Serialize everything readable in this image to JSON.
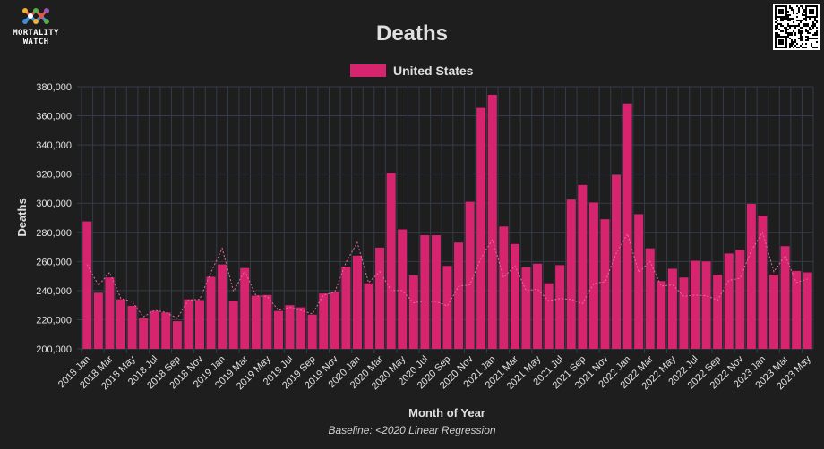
{
  "brand": {
    "logo_line1": "MORTALITY",
    "logo_line2": "WATCH"
  },
  "colors": {
    "bar": "#d6246e",
    "baseline": "#e46fa0",
    "grid": "#353b4a",
    "text": "#e0e0e0",
    "background": "#1e1e1e"
  },
  "chart_data": {
    "type": "bar",
    "title": "Deaths",
    "xlabel": "Month of Year",
    "ylabel": "Deaths",
    "caption": "Baseline: <2020 Linear Regression",
    "ylim": [
      200000,
      380000
    ],
    "yticks": [
      200000,
      220000,
      240000,
      260000,
      280000,
      300000,
      320000,
      340000,
      360000,
      380000
    ],
    "ytick_labels": [
      "200,000",
      "220,000",
      "240,000",
      "260,000",
      "280,000",
      "300,000",
      "320,000",
      "340,000",
      "360,000",
      "380,000"
    ],
    "legend": [
      {
        "label": "United States",
        "color": "#d6246e"
      }
    ],
    "categories": [
      "2018 Jan",
      "2018 Feb",
      "2018 Mar",
      "2018 Apr",
      "2018 May",
      "2018 Jun",
      "2018 Jul",
      "2018 Aug",
      "2018 Sep",
      "2018 Oct",
      "2018 Nov",
      "2018 Dec",
      "2019 Jan",
      "2019 Feb",
      "2019 Mar",
      "2019 Apr",
      "2019 May",
      "2019 Jun",
      "2019 Jul",
      "2019 Aug",
      "2019 Sep",
      "2019 Oct",
      "2019 Nov",
      "2019 Dec",
      "2020 Jan",
      "2020 Feb",
      "2020 Mar",
      "2020 Apr",
      "2020 May",
      "2020 Jun",
      "2020 Jul",
      "2020 Aug",
      "2020 Sep",
      "2020 Oct",
      "2020 Nov",
      "2020 Dec",
      "2021 Jan",
      "2021 Feb",
      "2021 Mar",
      "2021 Apr",
      "2021 May",
      "2021 Jun",
      "2021 Jul",
      "2021 Aug",
      "2021 Sep",
      "2021 Oct",
      "2021 Nov",
      "2021 Dec",
      "2022 Jan",
      "2022 Feb",
      "2022 Mar",
      "2022 Apr",
      "2022 May",
      "2022 Jun",
      "2022 Jul",
      "2022 Aug",
      "2022 Sep",
      "2022 Oct",
      "2022 Nov",
      "2022 Dec",
      "2023 Jan",
      "2023 Feb",
      "2023 Mar",
      "2023 Apr",
      "2023 May"
    ],
    "xtick_labels": [
      "2018 Jan",
      "2018 Mar",
      "2018 May",
      "2018 Jul",
      "2018 Sep",
      "2018 Nov",
      "2019 Jan",
      "2019 Mar",
      "2019 May",
      "2019 Jul",
      "2019 Sep",
      "2019 Nov",
      "2020 Jan",
      "2020 Mar",
      "2020 May",
      "2020 Jul",
      "2020 Sep",
      "2020 Nov",
      "2021 Jan",
      "2021 Mar",
      "2021 May",
      "2021 Jul",
      "2021 Sep",
      "2021 Nov",
      "2022 Jan",
      "2022 Mar",
      "2022 May",
      "2022 Jul",
      "2022 Sep",
      "2022 Nov",
      "2023 Jan",
      "2023 Mar",
      "2023 May"
    ],
    "series": [
      {
        "name": "United States",
        "values": [
          287500,
          238500,
          249000,
          234000,
          229500,
          221000,
          226000,
          225000,
          219000,
          234000,
          233500,
          249500,
          258000,
          233000,
          255500,
          236500,
          237000,
          226000,
          230000,
          228500,
          223500,
          238000,
          239000,
          256500,
          264000,
          245000,
          269500,
          321000,
          282000,
          250500,
          278000,
          278000,
          257000,
          273000,
          301000,
          365500,
          374500,
          284000,
          272000,
          256000,
          258500,
          245000,
          257500,
          302500,
          312500,
          300500,
          289000,
          319500,
          368500,
          292500,
          269000,
          246500,
          255000,
          249000,
          260500,
          260000,
          251000,
          265500,
          268000,
          299500,
          291500,
          251000,
          270500,
          253500,
          252500
        ]
      },
      {
        "name": "Baseline",
        "values": [
          258000,
          243500,
          252500,
          234500,
          232500,
          222000,
          226500,
          225000,
          221000,
          233500,
          234000,
          252500,
          269000,
          239500,
          253500,
          236500,
          236000,
          226500,
          228500,
          226500,
          224000,
          237000,
          239000,
          259500,
          273000,
          245500,
          253000,
          240000,
          240000,
          231500,
          233000,
          232500,
          229500,
          243000,
          244000,
          262500,
          275000,
          249000,
          257000,
          240000,
          241000,
          233000,
          234500,
          234000,
          231000,
          245000,
          246000,
          265500,
          279000,
          252500,
          260000,
          243000,
          244000,
          236000,
          237000,
          236500,
          233500,
          247000,
          248500,
          267500,
          280000,
          253000,
          264000,
          245500,
          248000
        ]
      }
    ]
  }
}
